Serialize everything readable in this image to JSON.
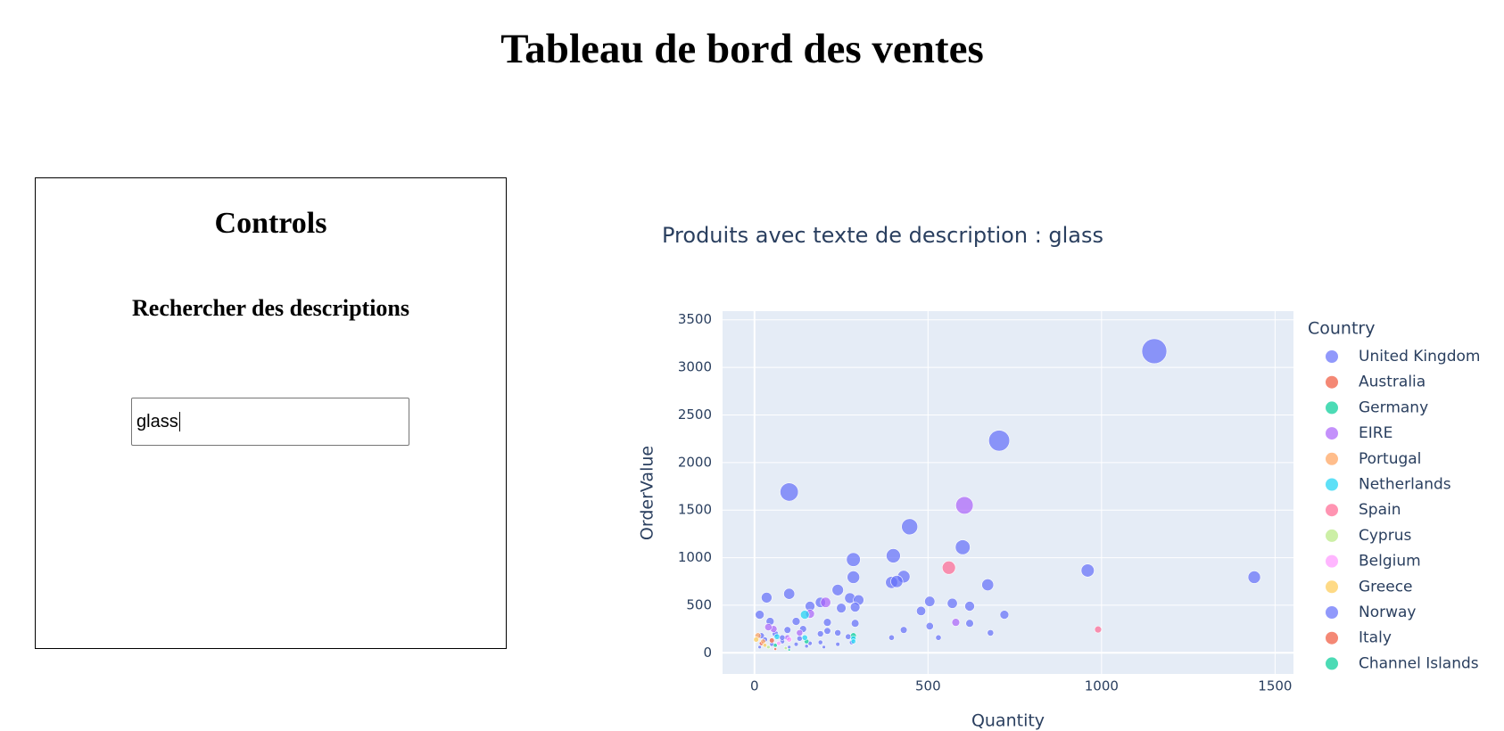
{
  "page": {
    "title": "Tableau de bord des ventes",
    "controls": {
      "title": "Controls",
      "search_label": "Rechercher des descriptions",
      "search_value": "glass"
    }
  },
  "chart_data": {
    "type": "scatter",
    "title": "Produits avec texte de description : glass",
    "x_label": "Quantity",
    "y_label": "OrderValue",
    "legend_title": "Country",
    "legend": "right",
    "grid": true,
    "xlim": [
      -92,
      1553
    ],
    "ylim": [
      -222,
      3591
    ],
    "xticks": [
      0,
      500,
      1000,
      1500
    ],
    "yticks": [
      0,
      500,
      1000,
      1500,
      2000,
      2500,
      3000,
      3500
    ],
    "series": [
      {
        "name": "United Kingdom",
        "color": "#636efa",
        "x": [
          1152,
          705,
          100,
          447,
          600,
          285,
          400,
          960,
          1440,
          285,
          430,
          395,
          410,
          672,
          100,
          35,
          240,
          275,
          300,
          190,
          160,
          250,
          290,
          480,
          505,
          570,
          620,
          720,
          15,
          45,
          120,
          210,
          290,
          430,
          505,
          620,
          395,
          530,
          680,
          240,
          210,
          140,
          95,
          60,
          20,
          190,
          270,
          190,
          240,
          130,
          80,
          50,
          15,
          100,
          150,
          200,
          280,
          30,
          160
        ],
        "values": [
          3170,
          2230,
          1690,
          1325,
          1110,
          980,
          1020,
          865,
          795,
          795,
          800,
          740,
          750,
          715,
          620,
          580,
          660,
          575,
          555,
          530,
          490,
          470,
          480,
          440,
          540,
          520,
          490,
          400,
          400,
          330,
          330,
          320,
          310,
          240,
          280,
          310,
          160,
          160,
          210,
          210,
          230,
          250,
          240,
          200,
          180,
          200,
          170,
          110,
          90,
          150,
          120,
          90,
          60,
          60,
          70,
          60,
          110,
          140,
          100
        ]
      },
      {
        "name": "Australia",
        "color": "#EF553B",
        "x": [
          20,
          50
        ],
        "values": [
          100,
          130
        ]
      },
      {
        "name": "Germany",
        "color": "#00cc96",
        "x": [
          285,
          150,
          60
        ],
        "values": [
          180,
          120,
          80
        ]
      },
      {
        "name": "EIRE",
        "color": "#ab63fa",
        "x": [
          605,
          205,
          580,
          160,
          130,
          95,
          55,
          40
        ],
        "values": [
          1550,
          530,
          320,
          410,
          210,
          160,
          250,
          270
        ]
      },
      {
        "name": "Portugal",
        "color": "#FFA15A",
        "x": [
          10,
          25
        ],
        "values": [
          180,
          120
        ]
      },
      {
        "name": "Netherlands",
        "color": "#19d3f3",
        "x": [
          145,
          285,
          145,
          65,
          285
        ],
        "values": [
          400,
          150,
          160,
          170,
          120
        ]
      },
      {
        "name": "Spain",
        "color": "#FF6692",
        "x": [
          560,
          990
        ],
        "values": [
          895,
          245
        ]
      },
      {
        "name": "Cyprus",
        "color": "#B6E880",
        "x": [
          40,
          90
        ],
        "values": [
          60,
          50
        ]
      },
      {
        "name": "Belgium",
        "color": "#FF97FF",
        "x": [
          100,
          70
        ],
        "values": [
          140,
          100
        ]
      },
      {
        "name": "Greece",
        "color": "#FECB52",
        "x": [
          5,
          30
        ],
        "values": [
          140,
          80
        ]
      },
      {
        "name": "Norway",
        "color": "#636efa",
        "x": [
          80,
          120
        ],
        "values": [
          160,
          90
        ]
      },
      {
        "name": "Italy",
        "color": "#EF553B",
        "x": [
          60
        ],
        "values": [
          40
        ]
      },
      {
        "name": "Channel Islands",
        "color": "#00cc96",
        "x": [
          100
        ],
        "values": [
          30
        ]
      }
    ]
  }
}
